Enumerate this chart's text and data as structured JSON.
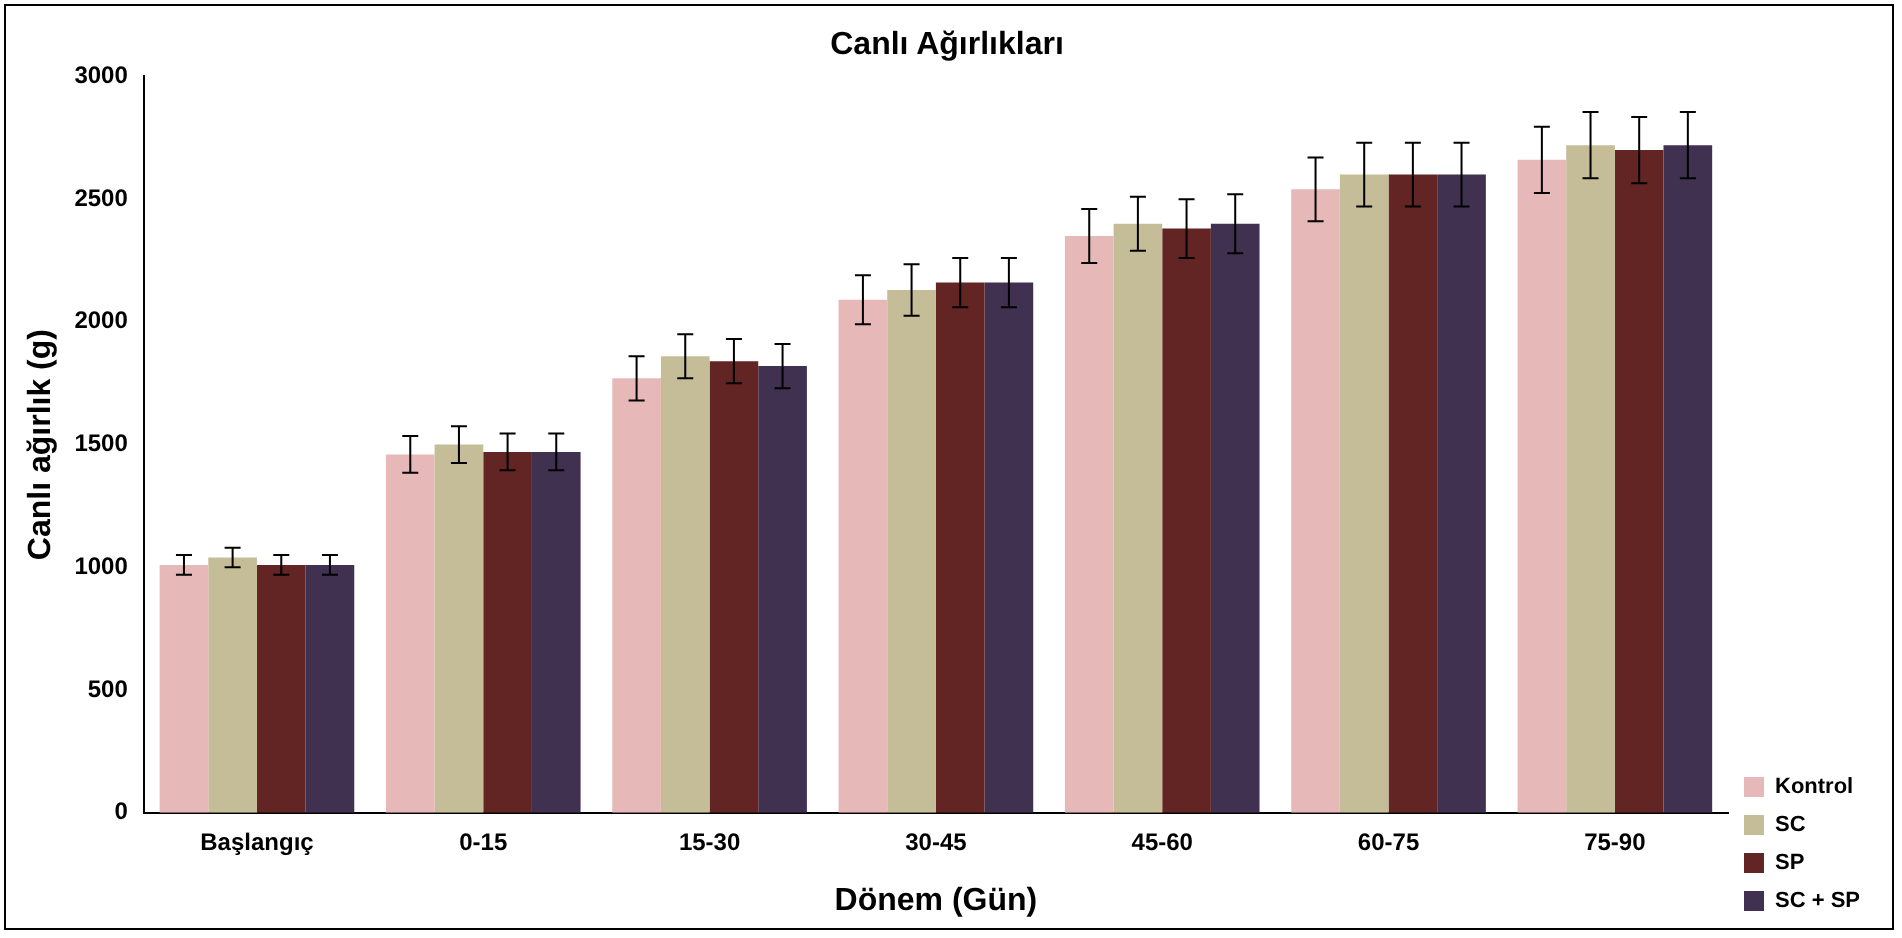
{
  "chart_data": {
    "type": "bar",
    "title": "Canlı Ağırlıkları",
    "xlabel": "Dönem (Gün)",
    "ylabel": "Canlı ağırlık (g)",
    "categories": [
      "Başlangıç",
      "0-15",
      "15-30",
      "30-45",
      "45-60",
      "60-75",
      "75-90"
    ],
    "series": [
      {
        "name": "Kontrol",
        "color": "#e6b8b7",
        "values": [
          1010,
          1460,
          1770,
          2090,
          2350,
          2540,
          2660
        ],
        "errors": [
          40,
          75,
          90,
          100,
          110,
          130,
          135
        ]
      },
      {
        "name": "SC",
        "color": "#c4bd97",
        "values": [
          1040,
          1500,
          1860,
          2130,
          2400,
          2600,
          2720
        ],
        "errors": [
          40,
          75,
          90,
          105,
          110,
          130,
          135
        ]
      },
      {
        "name": "SP",
        "color": "#632523",
        "values": [
          1010,
          1470,
          1840,
          2160,
          2380,
          2600,
          2700
        ],
        "errors": [
          40,
          75,
          90,
          100,
          120,
          130,
          135
        ]
      },
      {
        "name": "SC + SP",
        "color": "#403151",
        "values": [
          1010,
          1470,
          1820,
          2160,
          2400,
          2600,
          2720
        ],
        "errors": [
          40,
          75,
          90,
          100,
          120,
          130,
          135
        ]
      }
    ],
    "ylim": [
      0,
      3000
    ],
    "yticks": [
      0,
      500,
      1000,
      1500,
      2000,
      2500,
      3000
    ],
    "grid": false,
    "legend": "bottom right"
  }
}
